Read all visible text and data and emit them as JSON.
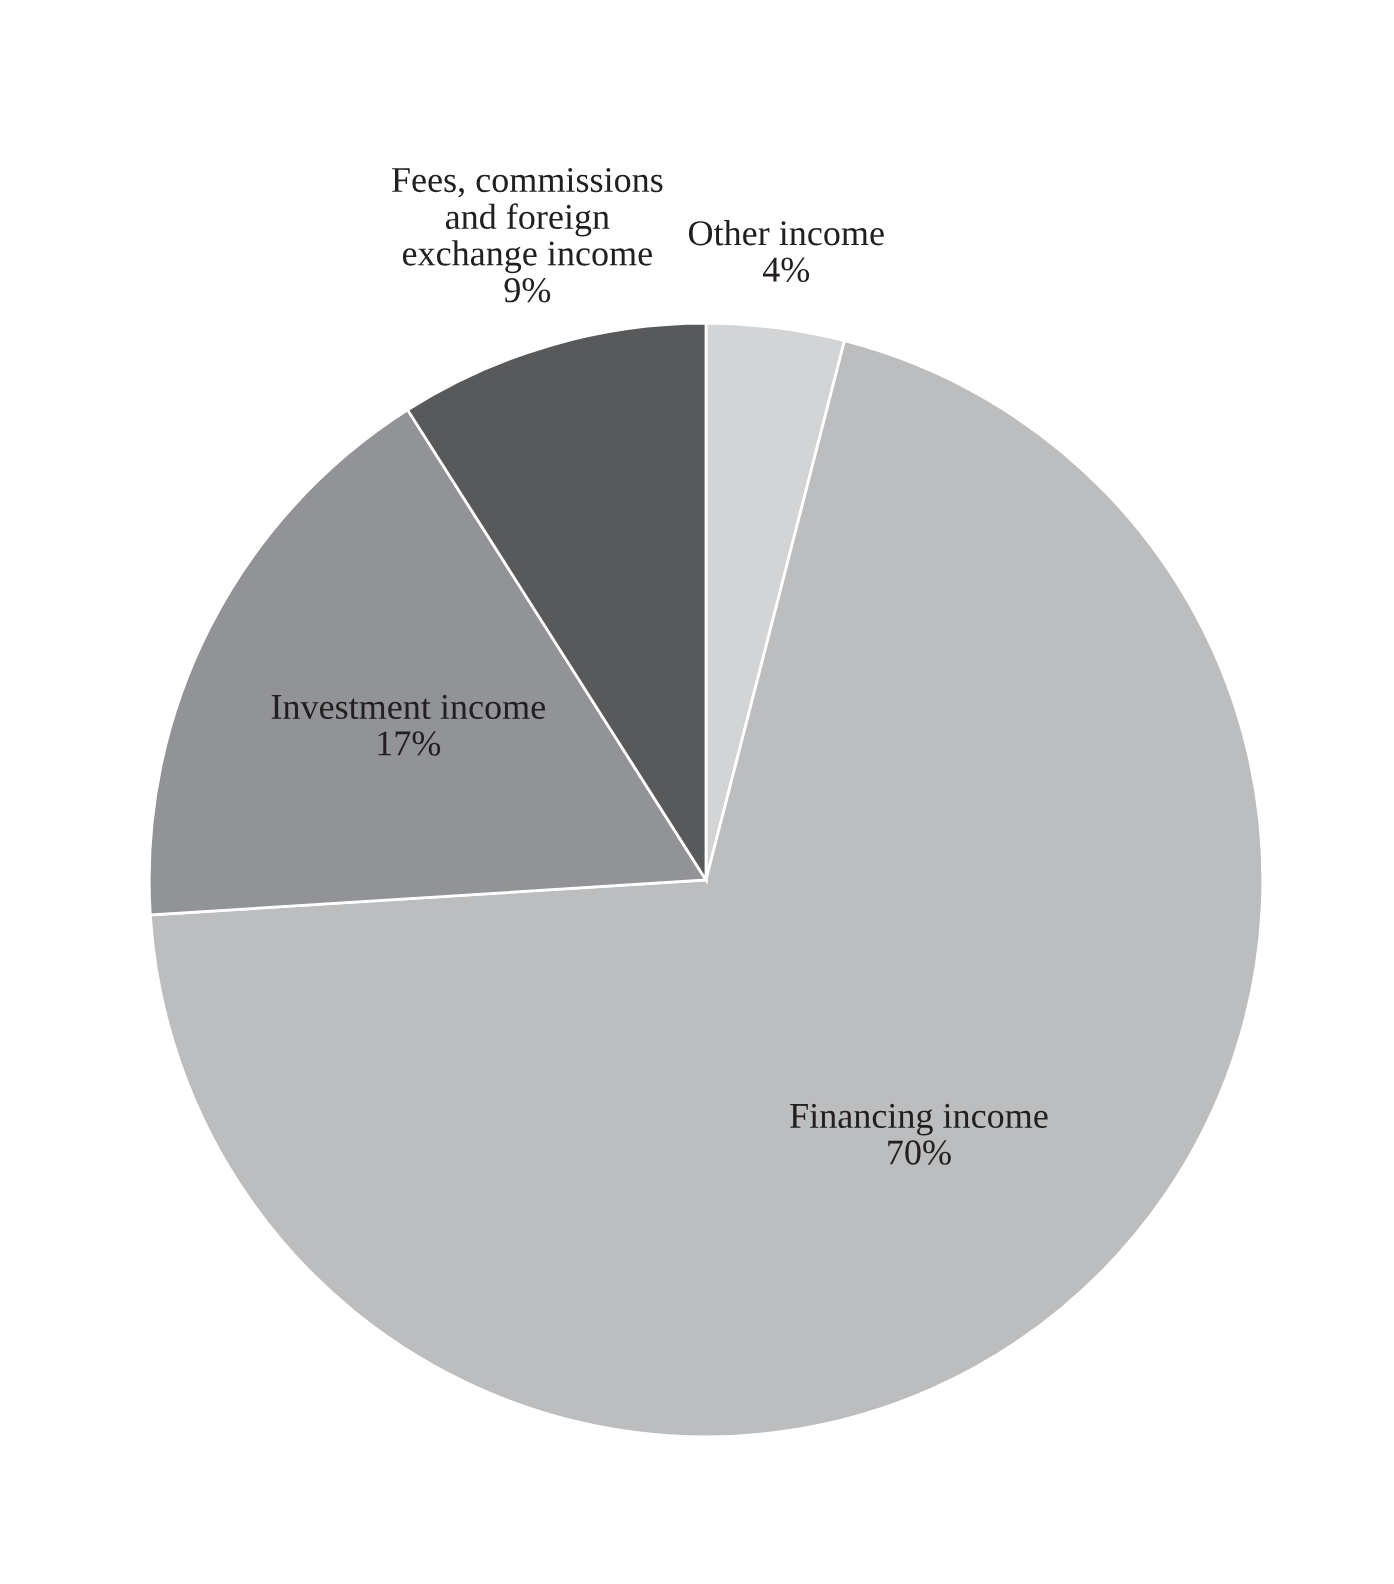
{
  "chart_data": {
    "type": "pie",
    "categories": [
      "Other income",
      "Financing income",
      "Investment income",
      "Fees, commissions\nand foreign\nexchange income"
    ],
    "values": [
      4,
      70,
      17,
      9
    ],
    "value_labels": [
      "4%",
      "70%",
      "17%",
      "9%"
    ],
    "colors": [
      "#d3d4d6",
      "#bcbdbf",
      "#929396",
      "#58595b"
    ]
  }
}
